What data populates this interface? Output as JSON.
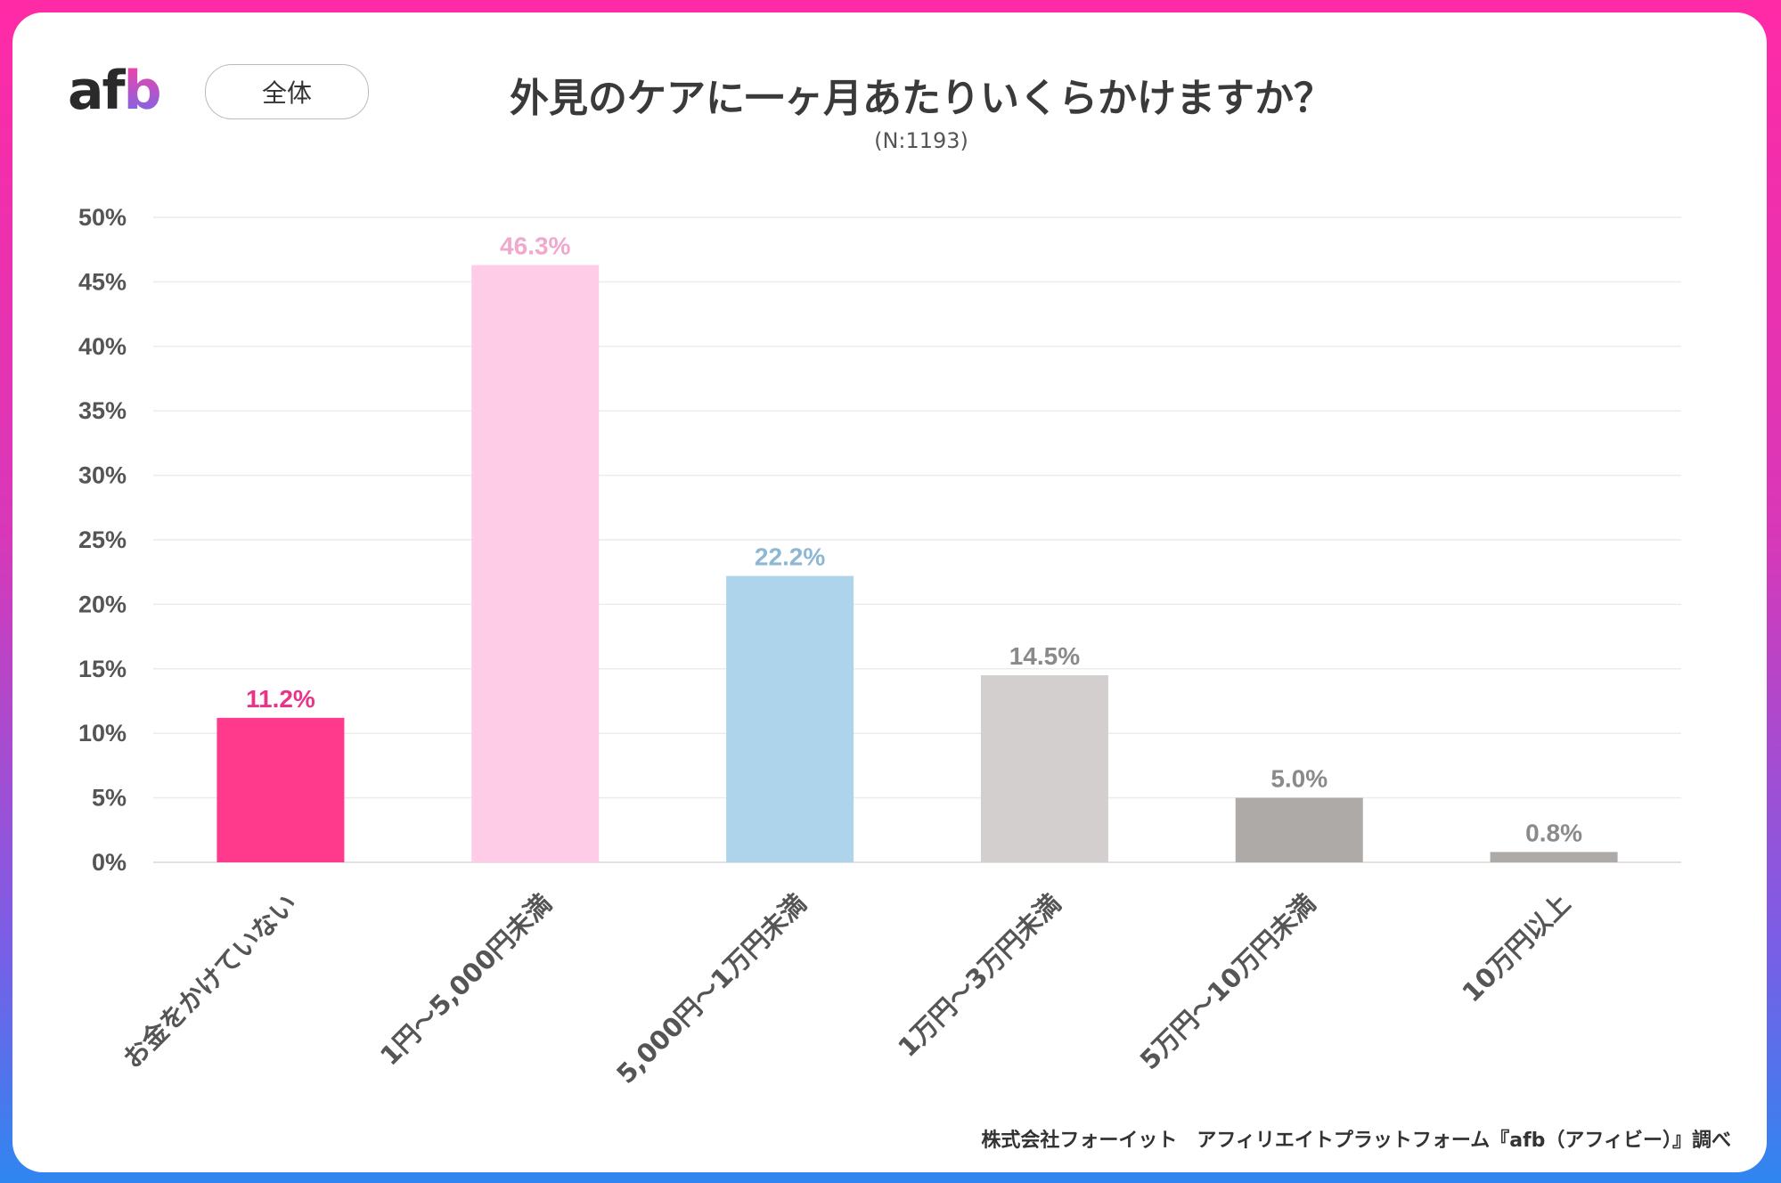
{
  "header": {
    "logo": "afb",
    "segment_label": "全体",
    "title": "外見のケアに一ヶ月あたりいくらかけますか？",
    "sample_size": "(N:1193)"
  },
  "footer": {
    "source": "株式会社フォーイット　アフィリエイトプラットフォーム『afb（アフィビー）』調べ"
  },
  "chart_data": {
    "type": "bar",
    "title": "外見のケアに一ヶ月あたりいくらかけますか？",
    "categories": [
      "お金をかけていない",
      "1円～5,000円未満",
      "5,000円～1万円未満",
      "1万円～3万円未満",
      "5万円～10万円未満",
      "10万円以上"
    ],
    "values": [
      11.2,
      46.3,
      22.2,
      14.5,
      5.0,
      0.8
    ],
    "data_labels": [
      "11.2%",
      "46.3%",
      "22.2%",
      "14.5%",
      "5.0%",
      "0.8%"
    ],
    "bar_colors": [
      "#ff3a8c",
      "#ffcce8",
      "#aed4ec",
      "#d3cfcf",
      "#adaaa7",
      "#adaaa7"
    ],
    "label_colors": [
      "#e8358a",
      "#f0a8cc",
      "#8db8d4",
      "#8a8a8a",
      "#8a8a8a",
      "#8a8a8a"
    ],
    "ylim": [
      0,
      50
    ],
    "yticks": [
      "0%",
      "5%",
      "10%",
      "15%",
      "20%",
      "25%",
      "30%",
      "35%",
      "40%",
      "45%",
      "50%"
    ],
    "grid": true,
    "legend": "none"
  }
}
